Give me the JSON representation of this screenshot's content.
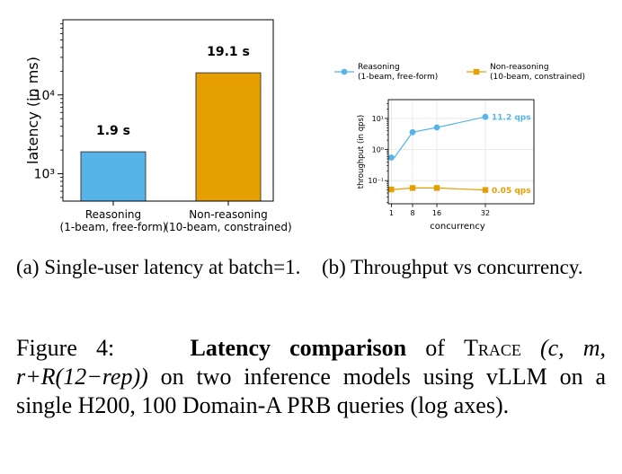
{
  "chart_data": [
    {
      "type": "bar",
      "panel": "a",
      "categories": [
        "Reasoning\n(1-beam, free-form)",
        "Non-reasoning\n(10-beam, constrained)"
      ],
      "values": [
        1900,
        19100
      ],
      "data_labels": [
        "1.9 s",
        "19.1 s"
      ],
      "colors": [
        "#56b4e9",
        "#e69f00"
      ],
      "ylabel": "latency (in ms)",
      "xlabel": "",
      "yscale": "log",
      "ylim": [
        450,
        90000
      ],
      "yticks": [
        1000,
        10000
      ],
      "yticklabels": [
        "10³",
        "10⁴"
      ],
      "grid": false,
      "legend": "none"
    },
    {
      "type": "line",
      "panel": "b",
      "x": [
        1,
        2,
        8,
        16,
        32
      ],
      "xticks": [
        1,
        8,
        16,
        32
      ],
      "xlim": [
        0,
        48
      ],
      "series": [
        {
          "name": "Reasoning\n(1-beam, free-form)",
          "color": "#56b4e9",
          "marker": "circle",
          "values": [
            0.55,
            0.55,
            3.6,
            5.1,
            11.2
          ],
          "end_label": "11.2 qps"
        },
        {
          "name": "Non-reasoning\n(10-beam, constrained)",
          "color": "#e69f00",
          "marker": "square",
          "values": [
            0.052,
            0.052,
            0.058,
            0.058,
            0.05
          ],
          "end_label": "0.05 qps"
        }
      ],
      "xlabel": "concurrency",
      "ylabel": "throughput (in qps)",
      "yscale": "log",
      "ylim": [
        0.018,
        40
      ],
      "yticks": [
        0.1,
        1,
        10
      ],
      "yticklabels": [
        "10⁻¹",
        "10⁰",
        "10¹"
      ],
      "grid": true,
      "legend": "above"
    }
  ],
  "captions": {
    "a": "(a) Single-user latency at batch=1.",
    "b": "(b) Throughput vs concurrency.",
    "figure": {
      "prefix": "Figure 4:",
      "bold": "Latency comparison",
      "mid": "of",
      "system": "Trace",
      "formula": "(c, m, r+R(12−rep))",
      "rest": "on two inference models using vLLM on a single H200, 100 Domain-A PRB queries (log axes)."
    }
  }
}
